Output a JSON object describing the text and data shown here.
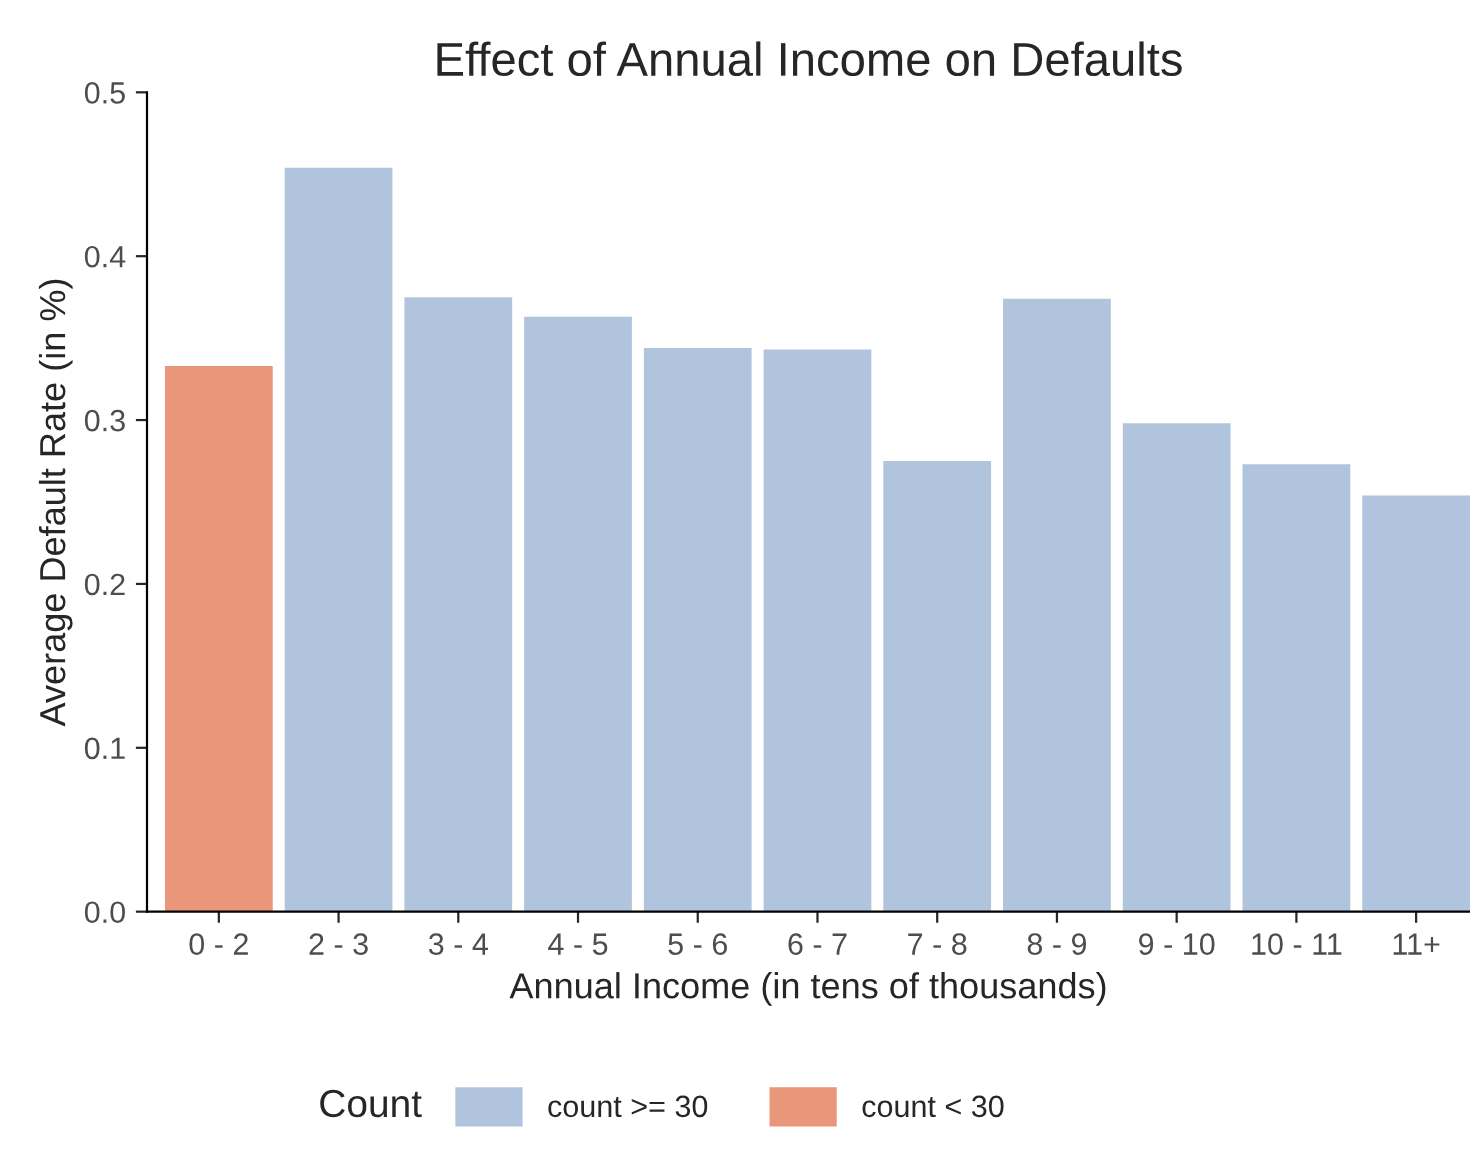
{
  "chart_data": {
    "type": "bar",
    "title": "Effect of Annual Income on Defaults",
    "xlabel": "Annual Income (in tens of thousands)",
    "ylabel": "Average Default Rate (in %)",
    "legend_title": "Count",
    "categories": [
      "0 - 2",
      "2 - 3",
      "3 - 4",
      "4 - 5",
      "5 - 6",
      "6 - 7",
      "7 - 8",
      "8 - 9",
      "9 - 10",
      "10 - 11",
      "11+"
    ],
    "series": [
      {
        "name": "count >= 30",
        "color": "#b0c4de",
        "values": [
          null,
          0.454,
          0.375,
          0.363,
          0.344,
          0.343,
          0.275,
          0.374,
          0.298,
          0.273,
          0.254
        ]
      },
      {
        "name": "count < 30",
        "color": "#e9967a",
        "values": [
          0.333,
          null,
          null,
          null,
          null,
          null,
          null,
          null,
          null,
          null,
          null
        ]
      }
    ],
    "ylim": [
      0,
      0.5
    ],
    "yticks": [
      {
        "value": 0,
        "label": "0.0"
      },
      0.1,
      0.2,
      0.3,
      0.4,
      0.5
    ],
    "grid": false,
    "legend": "bottom"
  }
}
